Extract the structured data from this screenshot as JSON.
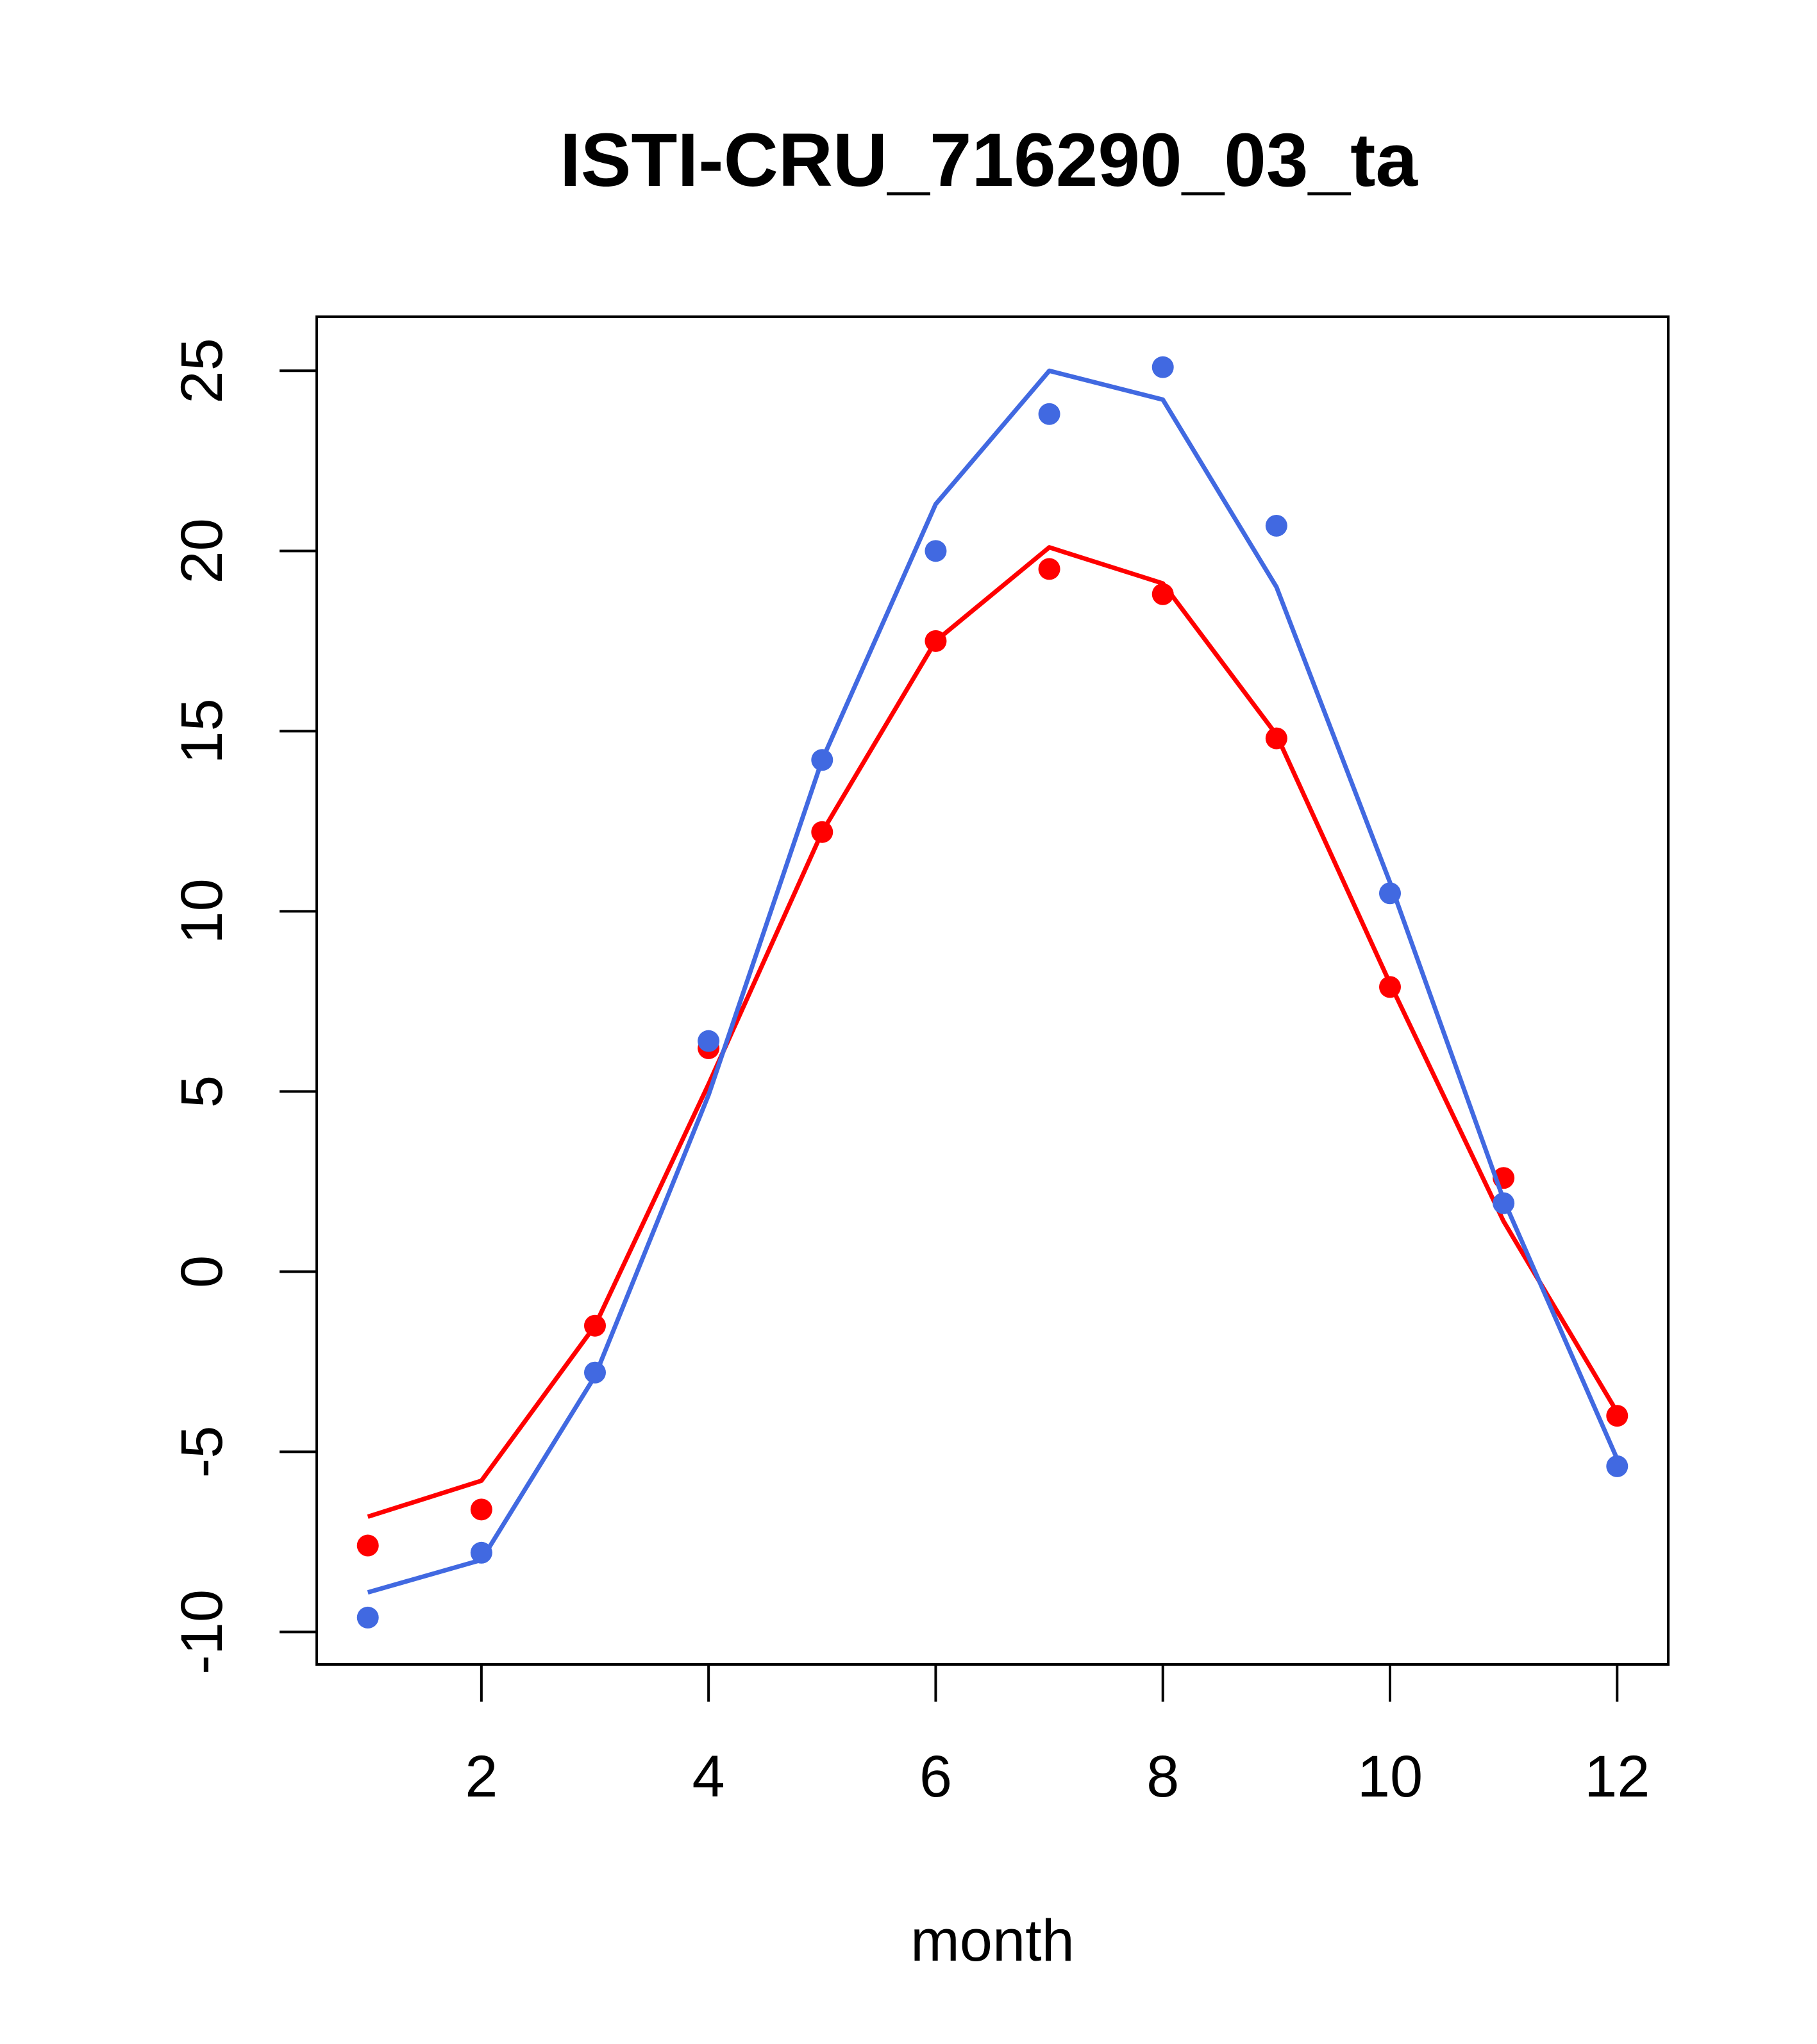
{
  "chart_data": {
    "type": "line",
    "title": "ISTI-CRU_716290_03_ta",
    "xlabel": "month",
    "ylabel": "",
    "xlim": [
      0.55,
      12.45
    ],
    "ylim": [
      -10.9,
      26.5
    ],
    "x_ticks": [
      2,
      4,
      6,
      8,
      10,
      12
    ],
    "y_ticks": [
      -10,
      -5,
      0,
      5,
      10,
      15,
      20,
      25
    ],
    "grid": false,
    "legend": "none",
    "x": [
      1,
      2,
      3,
      4,
      5,
      6,
      7,
      8,
      9,
      10,
      11,
      12
    ],
    "series": [
      {
        "color": "#ff0000",
        "points": [
          -7.6,
          -6.6,
          -1.5,
          6.2,
          12.2,
          17.5,
          19.5,
          18.8,
          14.8,
          7.9,
          2.6,
          -4.0
        ],
        "line": [
          -6.8,
          -5.8,
          -1.5,
          5.2,
          12.2,
          17.5,
          20.1,
          19.1,
          14.9,
          8.0,
          1.4,
          -3.9
        ]
      },
      {
        "color": "#4169e1",
        "points": [
          -9.6,
          -7.8,
          -2.8,
          6.4,
          14.2,
          20.0,
          23.8,
          25.1,
          20.7,
          10.5,
          1.9,
          -5.4
        ],
        "line": [
          -8.9,
          -8.0,
          -2.9,
          4.9,
          14.2,
          21.3,
          25.0,
          24.2,
          19.0,
          10.8,
          2.0,
          -5.2
        ]
      }
    ]
  }
}
